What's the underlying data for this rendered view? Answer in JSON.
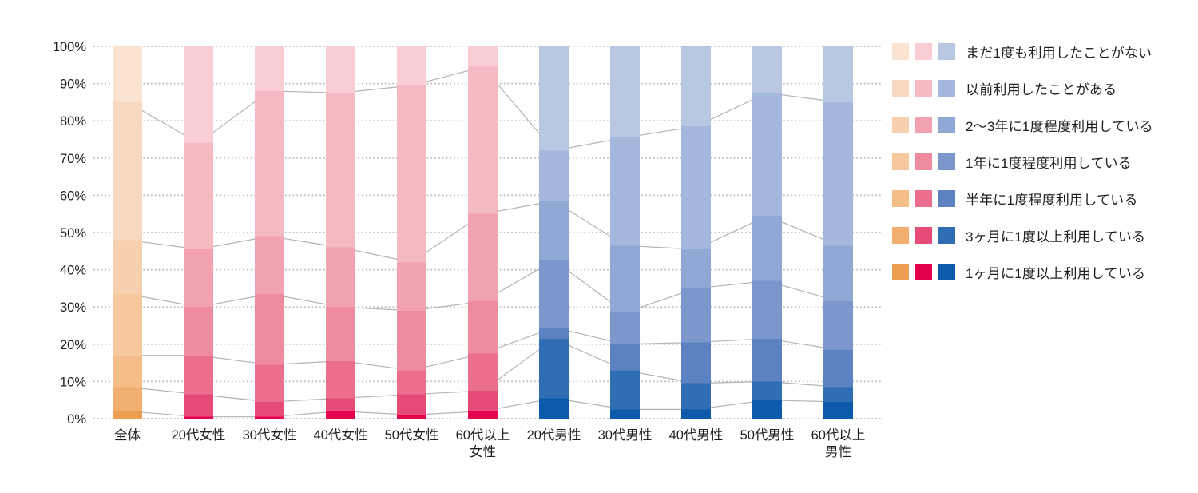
{
  "chart_data": {
    "type": "bar",
    "subtype": "stacked-100-percent-column",
    "title": "",
    "xlabel": "",
    "ylabel": "",
    "ylim": [
      0,
      100
    ],
    "grid": "horizontal-dotted",
    "legend_position": "right",
    "y_axis": {
      "ticks": [
        "100%",
        "90%",
        "80%",
        "70%",
        "60%",
        "50%",
        "40%",
        "30%",
        "20%",
        "10%",
        "0%"
      ]
    },
    "categories": [
      {
        "label": "全体",
        "lines": [
          "全体"
        ],
        "palette": "orange"
      },
      {
        "label": "20代女性",
        "lines": [
          "20代女性"
        ],
        "palette": "pink"
      },
      {
        "label": "30代女性",
        "lines": [
          "30代女性"
        ],
        "palette": "pink"
      },
      {
        "label": "40代女性",
        "lines": [
          "40代女性"
        ],
        "palette": "pink"
      },
      {
        "label": "50代女性",
        "lines": [
          "50代女性"
        ],
        "palette": "pink"
      },
      {
        "label": "60代以上女性",
        "lines": [
          "60代以上",
          "女性"
        ],
        "palette": "pink"
      },
      {
        "label": "20代男性",
        "lines": [
          "20代男性"
        ],
        "palette": "blue"
      },
      {
        "label": "30代男性",
        "lines": [
          "30代男性"
        ],
        "palette": "blue"
      },
      {
        "label": "40代男性",
        "lines": [
          "40代男性"
        ],
        "palette": "blue"
      },
      {
        "label": "50代男性",
        "lines": [
          "50代男性"
        ],
        "palette": "blue"
      },
      {
        "label": "60代以上男性",
        "lines": [
          "60代以上",
          "男性"
        ],
        "palette": "blue"
      }
    ],
    "series": [
      {
        "name": "まだ1度も利用したことがない",
        "values": [
          15,
          26,
          12,
          12.5,
          10.5,
          5.5,
          28,
          24.5,
          21.5,
          12.5,
          15
        ]
      },
      {
        "name": "以前利用したことがある",
        "values": [
          37,
          28.5,
          39,
          41.5,
          47.5,
          39.5,
          13.5,
          29,
          33,
          33,
          38.5
        ]
      },
      {
        "name": "2〜3年に1度程度利用している",
        "values": [
          14.5,
          15.5,
          15.5,
          16,
          13,
          23.5,
          16,
          18,
          10.5,
          17.5,
          15
        ]
      },
      {
        "name": "1年に1度程度利用している",
        "values": [
          16.5,
          13,
          19,
          14.5,
          16,
          14,
          18,
          8.5,
          14.5,
          15.5,
          13
        ]
      },
      {
        "name": "半年に1度程度利用している",
        "values": [
          8.5,
          10.5,
          10,
          10,
          6.5,
          10,
          3,
          7,
          11,
          11.5,
          10
        ]
      },
      {
        "name": "3ヶ月に1度以上利用している",
        "values": [
          6.5,
          6,
          4,
          3.5,
          5.5,
          5.5,
          16,
          10.5,
          7,
          5,
          4
        ]
      },
      {
        "name": "1ヶ月に1度以上利用している",
        "values": [
          2,
          0.5,
          0.5,
          2,
          1,
          2,
          5.5,
          2.5,
          2.5,
          5,
          4.5
        ]
      }
    ],
    "palettes": {
      "orange": [
        "#fae3d0",
        "#f8d9bf",
        "#f7d1af",
        "#f5c89d",
        "#f4bd89",
        "#f1ae6f",
        "#ee9e50"
      ],
      "pink": [
        "#f8cdd3",
        "#f5b9c2",
        "#f2a2b0",
        "#ef8b9f",
        "#eb6e8d",
        "#e64b77",
        "#e4004f"
      ],
      "blue": [
        "#bac7e3",
        "#a5b7dc",
        "#90a8d4",
        "#7b97cc",
        "#5c82c1",
        "#2f6db5",
        "#0d59aa"
      ]
    },
    "colors": {
      "grid_dots": "#b9b9b9",
      "connector_line": "#b3b3b3",
      "text": "#1f1f1f"
    }
  }
}
